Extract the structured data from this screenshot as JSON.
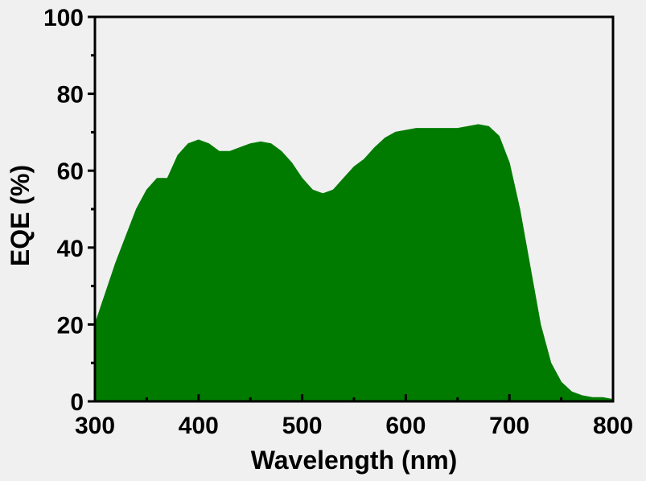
{
  "chart_data": {
    "type": "area",
    "title": "",
    "xlabel": "Wavelength (nm)",
    "ylabel": "EQE (%)",
    "xlim": [
      300,
      800
    ],
    "ylim": [
      0,
      100
    ],
    "x_ticks": [
      "300",
      "400",
      "500",
      "600",
      "700",
      "800"
    ],
    "y_ticks": [
      "0",
      "20",
      "40",
      "60",
      "80",
      "100"
    ],
    "x_tick_values": [
      300,
      400,
      500,
      600,
      700,
      800
    ],
    "y_tick_values": [
      0,
      20,
      40,
      60,
      80,
      100
    ],
    "x_minor_tick_values": [
      350,
      450,
      550,
      650,
      750
    ],
    "y_minor_tick_values": [
      10,
      30,
      50,
      70,
      90
    ],
    "grid": false,
    "legend": "none",
    "series": [
      {
        "color": "#007b00",
        "x": [
          300,
          310,
          320,
          330,
          340,
          350,
          360,
          370,
          380,
          390,
          400,
          410,
          420,
          430,
          440,
          450,
          460,
          470,
          480,
          490,
          500,
          510,
          520,
          530,
          540,
          550,
          560,
          570,
          580,
          590,
          600,
          610,
          620,
          630,
          640,
          650,
          660,
          670,
          680,
          690,
          700,
          710,
          720,
          730,
          740,
          750,
          760,
          770,
          780,
          790,
          800
        ],
        "values": [
          20,
          28,
          36,
          43,
          50,
          55,
          58,
          58,
          64,
          67,
          68,
          67,
          65,
          65,
          66,
          67,
          67.5,
          67,
          65,
          62,
          58,
          55,
          54,
          55,
          58,
          61,
          63,
          66,
          68.5,
          70,
          70.5,
          71,
          71,
          71,
          71,
          71,
          71.5,
          72,
          71.5,
          69,
          62,
          50,
          35,
          20,
          10,
          5,
          2.5,
          1.5,
          1,
          1,
          0.5
        ]
      }
    ]
  }
}
